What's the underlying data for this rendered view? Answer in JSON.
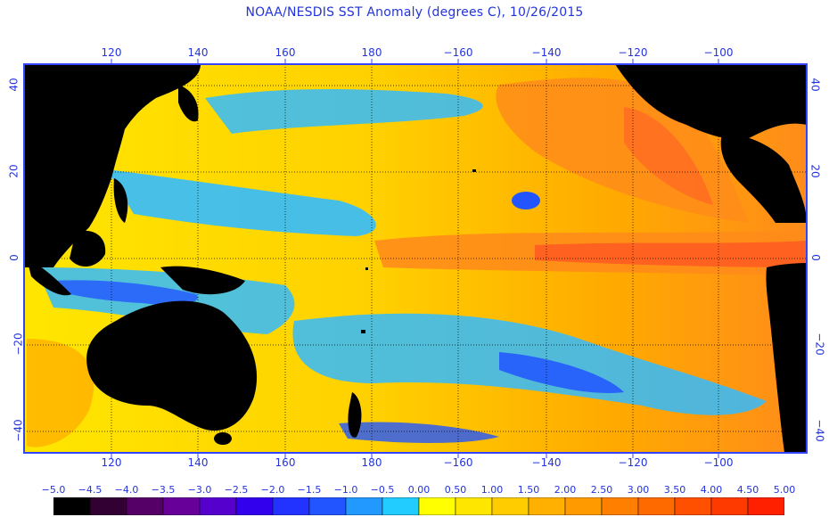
{
  "title": "NOAA/NESDIS SST Anomaly (degrees C), 10/26/2015",
  "map": {
    "lon_ticks": [
      "120",
      "140",
      "160",
      "180",
      "−160",
      "−140",
      "−120",
      "−100"
    ],
    "lat_ticks": [
      "40",
      "20",
      "0",
      "−20",
      "−40"
    ],
    "colors": {
      "frame": "#3344ff",
      "grid": "#000000",
      "land": "#000000",
      "warm_strong": "#ff4422",
      "warm": "#ff8c1a",
      "mild": "#ffcc00",
      "neutral": "#ffff00",
      "cool": "#33bbff",
      "cold": "#2255ff"
    }
  },
  "colorbar": {
    "labels": [
      "−5.0",
      "−4.5",
      "−4.0",
      "−3.5",
      "−3.0",
      "−2.5",
      "−2.0",
      "−1.5",
      "−1.0",
      "−0.5",
      "0.00",
      "0.50",
      "1.00",
      "1.50",
      "2.00",
      "2.50",
      "3.00",
      "3.50",
      "4.00",
      "4.50",
      "5.00"
    ],
    "colors": [
      "#000000",
      "#330033",
      "#550066",
      "#660099",
      "#5500cc",
      "#3300ee",
      "#2233ff",
      "#2255ff",
      "#2299ff",
      "#22ccff",
      "#ffff00",
      "#ffe600",
      "#ffcc00",
      "#ffb000",
      "#ff9a00",
      "#ff8000",
      "#ff6a00",
      "#ff5000",
      "#ff3a00",
      "#ff2000"
    ]
  }
}
